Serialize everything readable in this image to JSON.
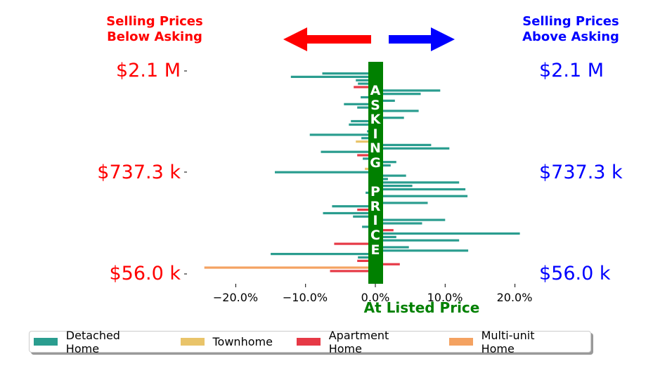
{
  "header": {
    "left_line1": "Selling Prices",
    "left_line2": "Below Asking",
    "right_line1": "Selling Prices",
    "right_line2": "Above Asking",
    "left_color": "#ff0000",
    "right_color": "#0000ff"
  },
  "center_band": {
    "text": "ASKING PRICE",
    "color": "#008000"
  },
  "colors": {
    "Detached Home": "#2a9d8f",
    "Townhome": "#e9c46a",
    "Apartment Home": "#e63946",
    "Multi-unit Home": "#f4a261"
  },
  "chart_data": {
    "type": "bar",
    "orientation": "horizontal",
    "xlabel": "At Listed Price",
    "xlim": [
      -26,
      22
    ],
    "xticks": [
      "−20.0%",
      "−10.0%",
      "0.0%",
      "10.0%",
      "20.0%"
    ],
    "xtick_values": [
      -20,
      -10,
      0,
      10,
      20
    ],
    "yticks_left": [
      "$2.1 M",
      "$737.3 k",
      "$56.0 k"
    ],
    "yticks_right": [
      "$2.1 M",
      "$737.3 k",
      "$56.0 k"
    ],
    "legend": [
      "Detached Home",
      "Townhome",
      "Apartment Home",
      "Multi-unit Home"
    ],
    "legend_position": "bottom",
    "bars": [
      {
        "v": -7.6,
        "type": "Detached Home"
      },
      {
        "v": -12.1,
        "type": "Detached Home"
      },
      {
        "v": -2.8,
        "type": "Detached Home"
      },
      {
        "v": -2.5,
        "type": "Detached Home"
      },
      {
        "v": -3.1,
        "type": "Apartment Home"
      },
      {
        "v": 9.3,
        "type": "Detached Home"
      },
      {
        "v": 6.5,
        "type": "Detached Home"
      },
      {
        "v": -2.1,
        "type": "Detached Home"
      },
      {
        "v": 2.8,
        "type": "Detached Home"
      },
      {
        "v": -4.5,
        "type": "Detached Home"
      },
      {
        "v": -2.6,
        "type": "Detached Home"
      },
      {
        "v": 6.2,
        "type": "Detached Home"
      },
      {
        "v": 0.9,
        "type": "Detached Home"
      },
      {
        "v": 4.1,
        "type": "Detached Home"
      },
      {
        "v": -3.5,
        "type": "Detached Home"
      },
      {
        "v": -3.8,
        "type": "Detached Home"
      },
      {
        "v": 0.8,
        "type": "Detached Home"
      },
      {
        "v": -1.2,
        "type": "Detached Home"
      },
      {
        "v": -9.4,
        "type": "Detached Home"
      },
      {
        "v": -2.0,
        "type": "Detached Home"
      },
      {
        "v": -2.8,
        "type": "Townhome"
      },
      {
        "v": 8.0,
        "type": "Detached Home"
      },
      {
        "v": 10.6,
        "type": "Detached Home"
      },
      {
        "v": -7.8,
        "type": "Detached Home"
      },
      {
        "v": -2.6,
        "type": "Apartment Home"
      },
      {
        "v": -1.8,
        "type": "Detached Home"
      },
      {
        "v": 3.0,
        "type": "Detached Home"
      },
      {
        "v": 2.2,
        "type": "Detached Home"
      },
      {
        "v": -1.5,
        "type": "Townhome"
      },
      {
        "v": -14.4,
        "type": "Detached Home"
      },
      {
        "v": 4.4,
        "type": "Detached Home"
      },
      {
        "v": 1.8,
        "type": "Detached Home"
      },
      {
        "v": 12.0,
        "type": "Detached Home"
      },
      {
        "v": 5.3,
        "type": "Detached Home"
      },
      {
        "v": 12.9,
        "type": "Detached Home"
      },
      {
        "v": -1.4,
        "type": "Detached Home"
      },
      {
        "v": 13.2,
        "type": "Detached Home"
      },
      {
        "v": -1.0,
        "type": "Detached Home"
      },
      {
        "v": 7.5,
        "type": "Detached Home"
      },
      {
        "v": -6.2,
        "type": "Detached Home"
      },
      {
        "v": -2.6,
        "type": "Apartment Home"
      },
      {
        "v": -7.5,
        "type": "Detached Home"
      },
      {
        "v": -3.2,
        "type": "Detached Home"
      },
      {
        "v": 10.0,
        "type": "Detached Home"
      },
      {
        "v": 6.7,
        "type": "Detached Home"
      },
      {
        "v": -1.9,
        "type": "Detached Home"
      },
      {
        "v": 2.6,
        "type": "Apartment Home"
      },
      {
        "v": 20.7,
        "type": "Detached Home"
      },
      {
        "v": 3.0,
        "type": "Detached Home"
      },
      {
        "v": 12.0,
        "type": "Detached Home"
      },
      {
        "v": -5.9,
        "type": "Apartment Home"
      },
      {
        "v": 4.8,
        "type": "Detached Home"
      },
      {
        "v": 13.3,
        "type": "Detached Home"
      },
      {
        "v": -15.0,
        "type": "Detached Home"
      },
      {
        "v": -2.5,
        "type": "Detached Home"
      },
      {
        "v": -2.6,
        "type": "Apartment Home"
      },
      {
        "v": 3.5,
        "type": "Apartment Home"
      },
      {
        "v": -24.5,
        "type": "Multi-unit Home"
      },
      {
        "v": -6.5,
        "type": "Apartment Home"
      }
    ]
  }
}
